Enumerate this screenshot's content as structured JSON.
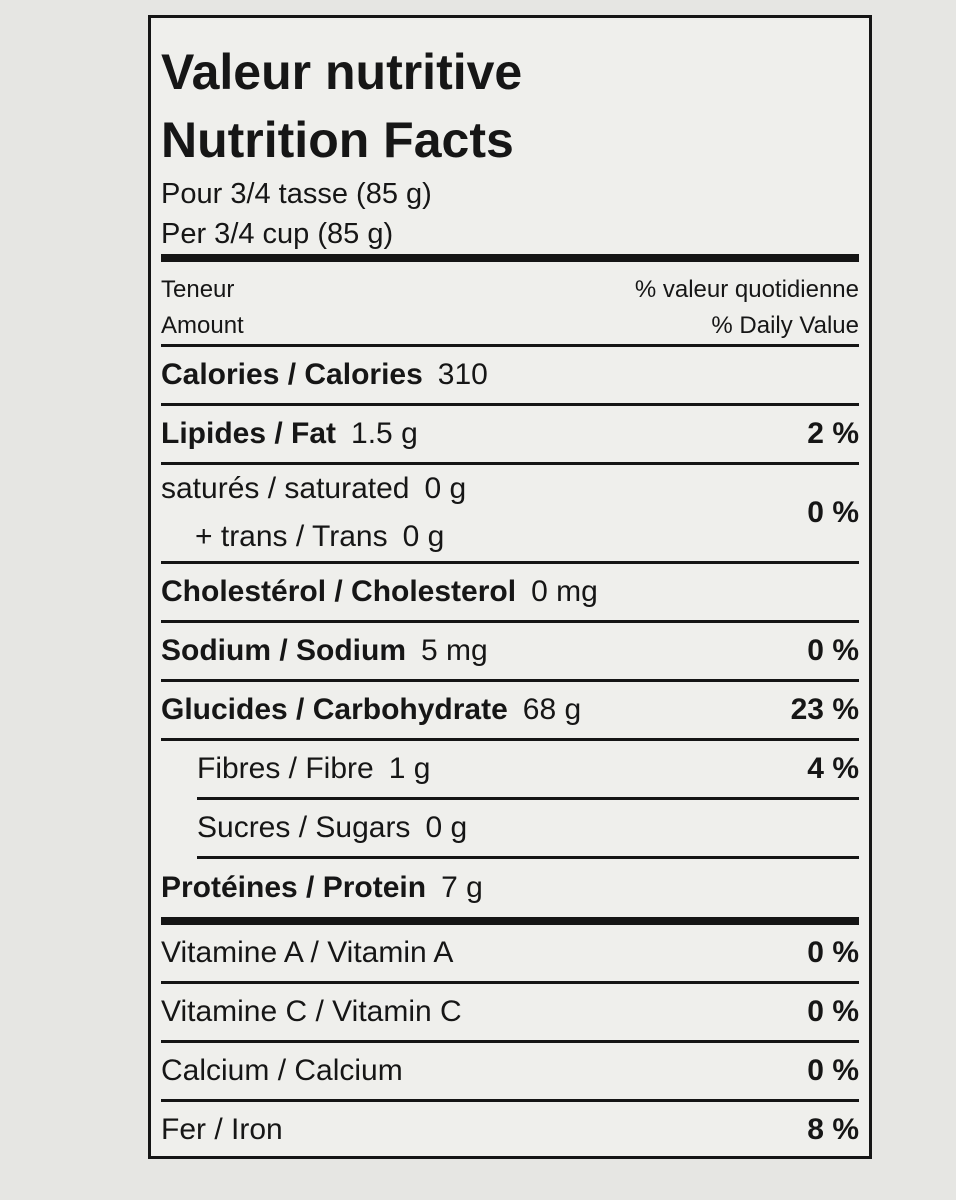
{
  "title": [
    "Valeur nutritive",
    "Nutrition Facts"
  ],
  "serving": [
    "Pour 3/4 tasse (85 g)",
    "Per 3/4 cup (85 g)"
  ],
  "header": {
    "amount": [
      "Teneur",
      "Amount"
    ],
    "dv": [
      "% valeur quotidienne",
      "% Daily Value"
    ]
  },
  "rows": [
    {
      "label": "Calories / Calories",
      "amount": "310",
      "bold": true
    },
    {
      "label": "Lipides / Fat",
      "amount": "1.5 g",
      "dv": "2 %",
      "bold": true
    },
    {
      "label": "saturés / saturated",
      "amount": "0 g",
      "dv": "0 %",
      "sub": {
        "label": "+ trans / Trans",
        "amount": "0 g"
      }
    },
    {
      "label": "Cholestérol / Cholesterol",
      "amount": "0 mg",
      "bold": true
    },
    {
      "label": "Sodium / Sodium",
      "amount": "5 mg",
      "dv": "0 %",
      "bold": true
    },
    {
      "label": "Glucides / Carbohydrate",
      "amount": "68 g",
      "dv": "23 %",
      "bold": true
    },
    {
      "label": "Fibres / Fibre",
      "amount": "1 g",
      "dv": "4 %",
      "indent": true
    },
    {
      "label": "Sucres / Sugars",
      "amount": "0 g",
      "indent": true
    },
    {
      "label": "Protéines / Protein",
      "amount": "7 g",
      "bold": true
    },
    {
      "label": "Vitamine A / Vitamin A",
      "dv": "0 %"
    },
    {
      "label": "Vitamine C / Vitamin C",
      "dv": "0 %"
    },
    {
      "label": "Calcium / Calcium",
      "dv": "0 %"
    },
    {
      "label": "Fer / Iron",
      "dv": "8 %"
    }
  ]
}
